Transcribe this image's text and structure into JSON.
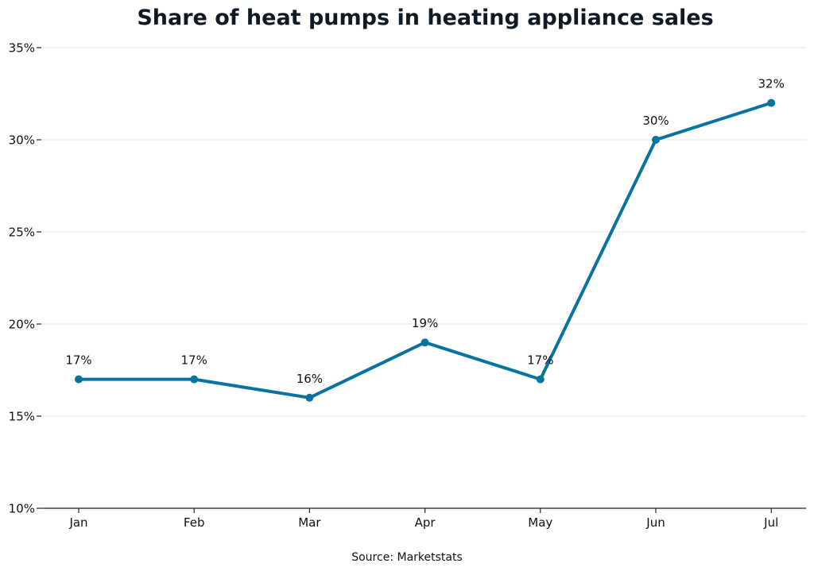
{
  "chart_data": {
    "type": "line",
    "title": "Share of heat pumps in heating appliance sales",
    "xlabel": "",
    "ylabel": "",
    "categories": [
      "Jan",
      "Feb",
      "Mar",
      "Apr",
      "May",
      "Jun",
      "Jul"
    ],
    "series": [
      {
        "values": [
          17,
          17,
          16,
          19,
          17,
          30,
          32
        ],
        "labels": [
          "17%",
          "17%",
          "16%",
          "19%",
          "17%",
          "30%",
          "32%"
        ],
        "color": "#0873a1"
      }
    ],
    "ylim": [
      10,
      35
    ],
    "yticks": [
      10,
      15,
      20,
      25,
      30,
      35
    ],
    "ytick_labels": [
      "10%",
      "15%",
      "20%",
      "25%",
      "30%",
      "35%"
    ],
    "grid": "horizontal",
    "legend": "none",
    "source": "Source: Marketstats"
  }
}
